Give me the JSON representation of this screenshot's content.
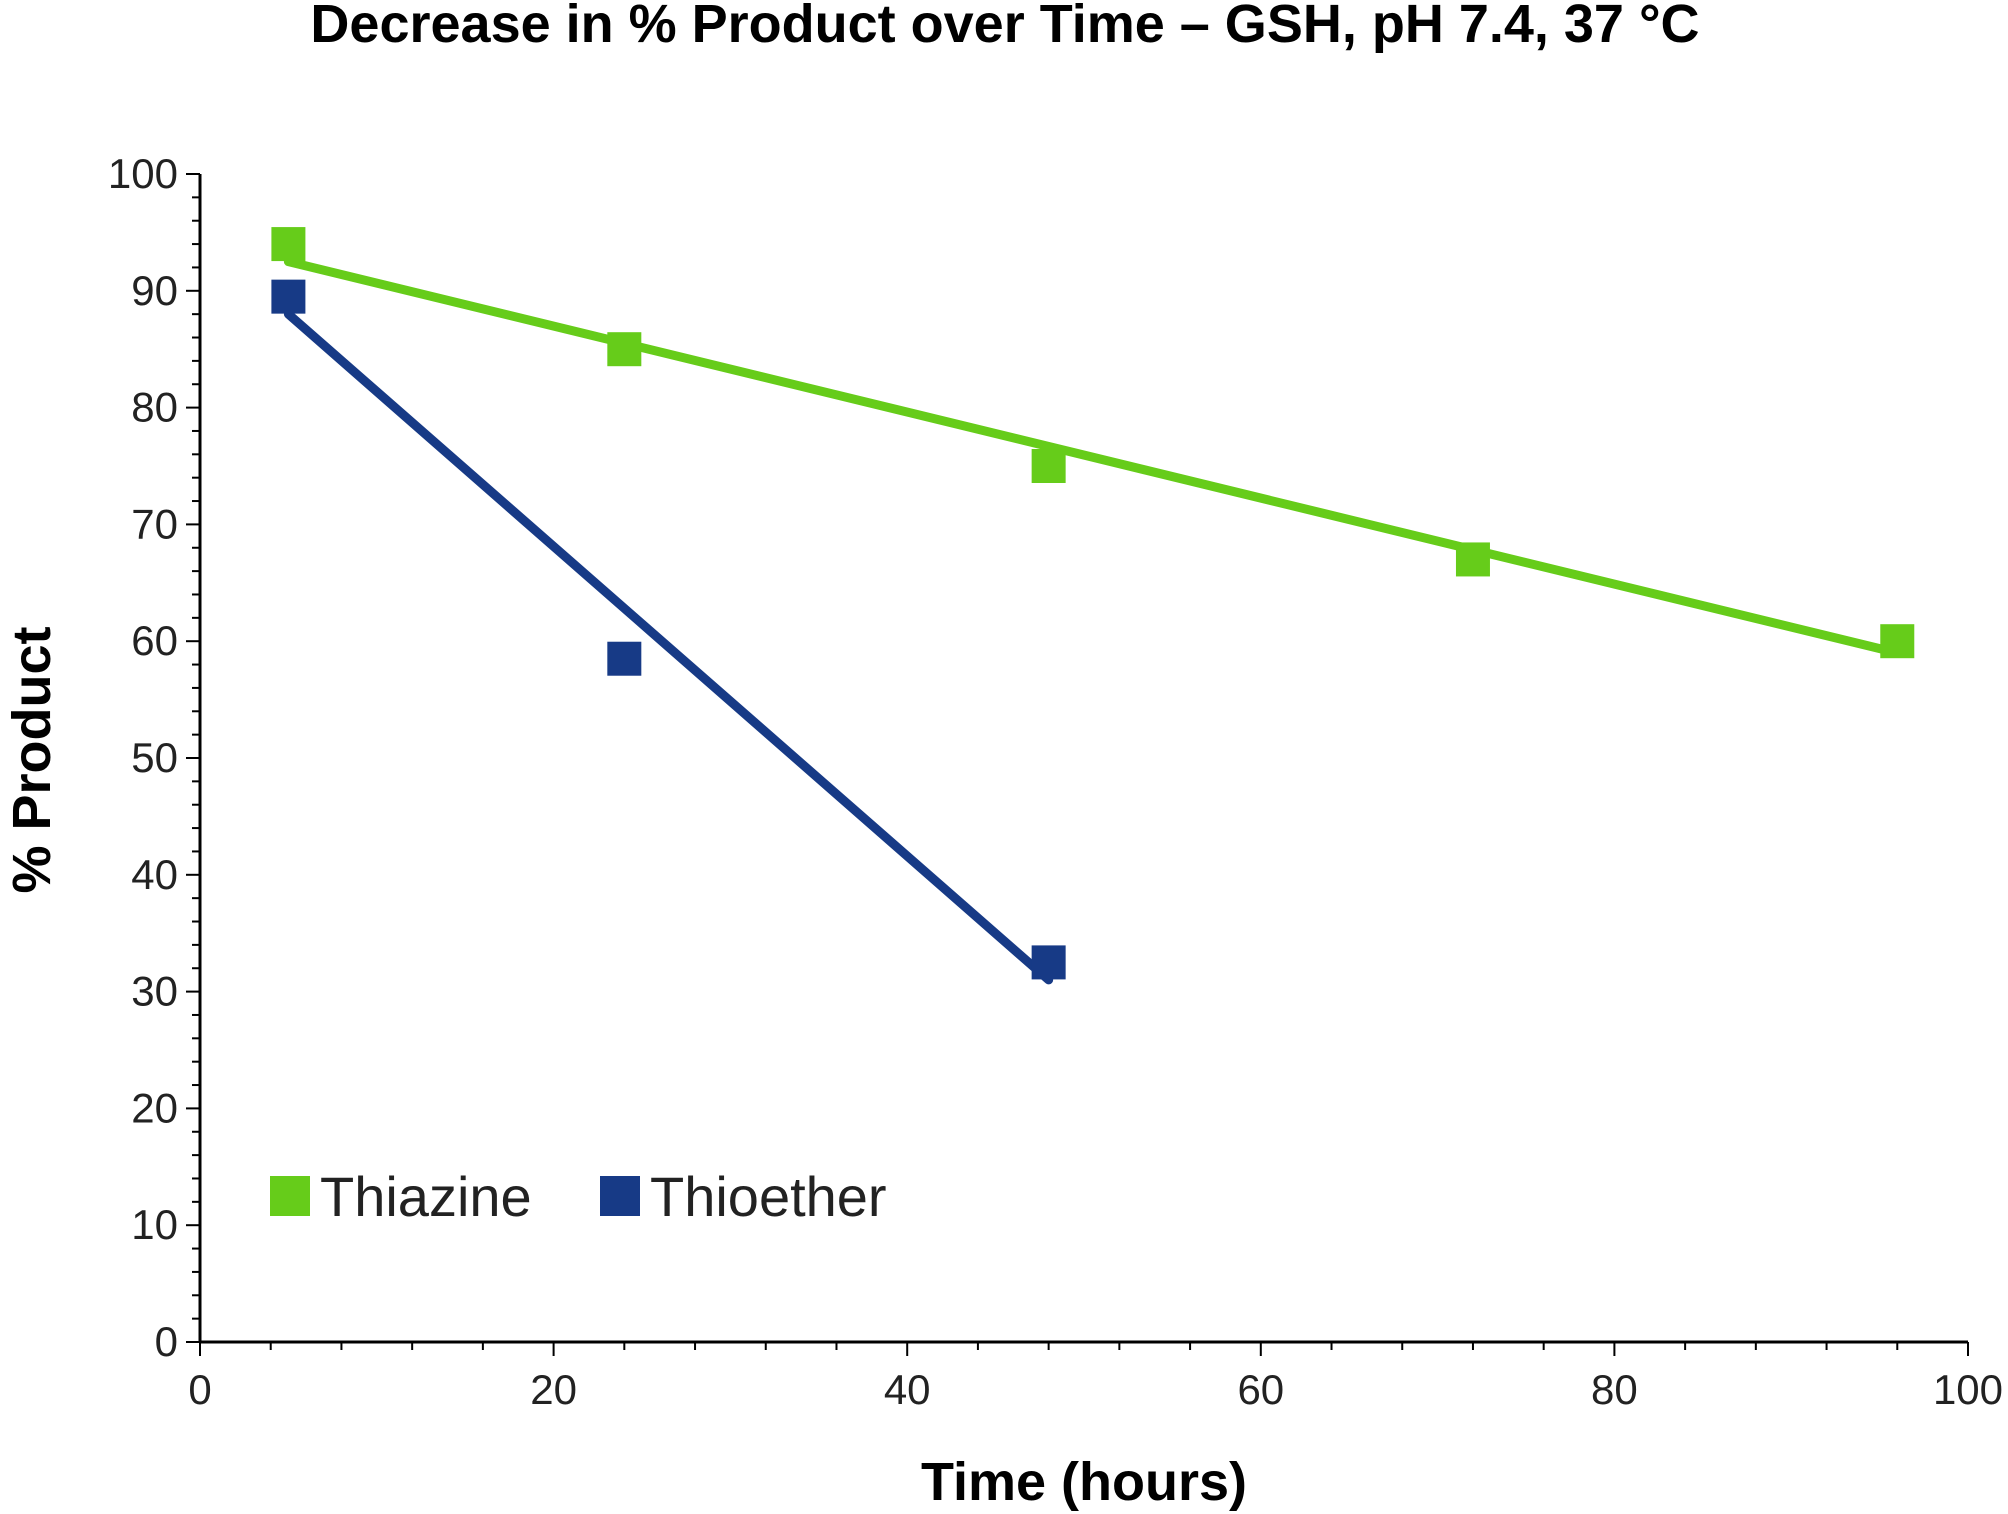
{
  "chart_data": {
    "type": "scatter",
    "title": "Decrease in % Product over Time – GSH, pH 7.4, 37 °C",
    "xlabel": "Time (hours)",
    "ylabel": "% Product",
    "xlim": [
      0,
      100
    ],
    "ylim": [
      0,
      100
    ],
    "x_ticks": [
      "0",
      "20",
      "40",
      "60",
      "80",
      "100"
    ],
    "y_ticks": [
      "0",
      "10",
      "20",
      "30",
      "40",
      "50",
      "60",
      "70",
      "80",
      "90",
      "100"
    ],
    "grid": false,
    "legend_position": "bottom-left",
    "series": [
      {
        "name": "Thiazine",
        "color": "#66CC1A",
        "marker": "square",
        "x": [
          5,
          24,
          48,
          72,
          96
        ],
        "y": [
          94,
          85,
          75,
          67,
          60
        ],
        "trendline": {
          "x": [
            5,
            96
          ],
          "y": [
            92.5,
            59.0
          ]
        }
      },
      {
        "name": "Thioether",
        "color": "#173A86",
        "marker": "square",
        "x": [
          5,
          24,
          48
        ],
        "y": [
          89.5,
          58.5,
          32.5
        ],
        "trendline": {
          "x": [
            5,
            48
          ],
          "y": [
            88.0,
            31.0
          ]
        }
      }
    ]
  }
}
